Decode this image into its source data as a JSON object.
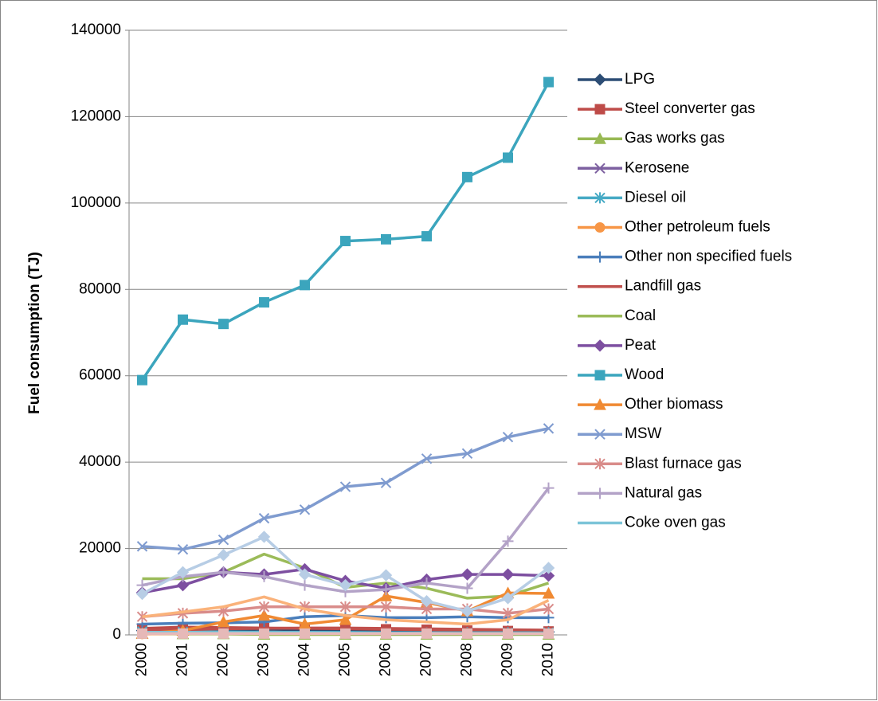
{
  "chart_data": {
    "type": "line",
    "y_label": "Fuel consumption (TJ)",
    "categories": [
      "2000",
      "2001",
      "2002",
      "2003",
      "2004",
      "2005",
      "2006",
      "2007",
      "2008",
      "2009",
      "2010"
    ],
    "ylim": [
      0,
      140000
    ],
    "yticks": [
      0,
      20000,
      40000,
      60000,
      80000,
      100000,
      120000,
      140000
    ],
    "grid": true,
    "legend": "right",
    "series": [
      {
        "name": "LPG",
        "color": "#2C4D75",
        "marker": "diamond",
        "values": [
          1000,
          1200,
          1100,
          1300,
          1200,
          1100,
          1000,
          900,
          800,
          800,
          700
        ]
      },
      {
        "name": "Steel converter gas",
        "color": "#BE4B48",
        "marker": "square",
        "values": [
          1500,
          1800,
          1700,
          1600,
          1500,
          1400,
          1300,
          1200,
          1000,
          900,
          800
        ]
      },
      {
        "name": "Gas works gas",
        "color": "#98B954",
        "marker": "triangle",
        "values": [
          300,
          200,
          200,
          100,
          100,
          100,
          100,
          100,
          100,
          100,
          100
        ]
      },
      {
        "name": "Kerosene",
        "color": "#7D60A0",
        "marker": "x",
        "values": [
          500,
          500,
          400,
          400,
          400,
          300,
          300,
          300,
          300,
          300,
          300
        ]
      },
      {
        "name": "Diesel oil",
        "color": "#46AAC5",
        "marker": "asterisk",
        "values": [
          800,
          700,
          700,
          600,
          600,
          600,
          500,
          500,
          500,
          500,
          500
        ]
      },
      {
        "name": "Other petroleum fuels",
        "color": "#F79646",
        "marker": "circle",
        "values": [
          200,
          300,
          300,
          300,
          300,
          300,
          300,
          300,
          300,
          300,
          300
        ]
      },
      {
        "name": "Other non specified fuels",
        "color": "#4A7EBB",
        "marker": "plus",
        "values": [
          2500,
          2700,
          2800,
          3000,
          4200,
          4500,
          4000,
          4000,
          4200,
          4000,
          4000
        ]
      },
      {
        "name": "Landfill gas",
        "color": "#C0504D",
        "marker": "none",
        "values": [
          1000,
          1200,
          1400,
          1500,
          1600,
          1600,
          1500,
          1400,
          1300,
          1200,
          1100
        ]
      },
      {
        "name": "Coal",
        "color": "#9BBB59",
        "marker": "none",
        "values": [
          13000,
          13000,
          14500,
          18700,
          15500,
          11000,
          12000,
          10800,
          8500,
          9000,
          12000
        ]
      },
      {
        "name": "Peat",
        "color": "#7D4FA0",
        "marker": "diamond",
        "values": [
          9800,
          11500,
          14500,
          14000,
          15200,
          12500,
          10800,
          12800,
          14000,
          14000,
          13700
        ]
      },
      {
        "name": "Wood",
        "color": "#3BA5BD",
        "marker": "square",
        "values": [
          59000,
          73000,
          72000,
          77000,
          81000,
          91200,
          91600,
          92300,
          106000,
          110500,
          128000
        ]
      },
      {
        "name": "Other biomass",
        "color": "#F08A33",
        "marker": "triangle",
        "values": [
          300,
          1000,
          3000,
          4500,
          2500,
          3500,
          9000,
          7500,
          5500,
          9700,
          9600
        ]
      },
      {
        "name": "MSW",
        "color": "#7F9BCF",
        "marker": "x",
        "values": [
          20500,
          19800,
          22000,
          27000,
          29000,
          34300,
          35200,
          40800,
          42000,
          45800,
          47800
        ]
      },
      {
        "name": "Blast furnace gas",
        "color": "#D98C8A",
        "marker": "asterisk",
        "values": [
          4200,
          5000,
          5500,
          6500,
          6500,
          6500,
          6500,
          6000,
          6000,
          5000,
          6000
        ]
      },
      {
        "name": "Natural gas",
        "color": "#B3A2C7",
        "marker": "plus",
        "values": [
          11500,
          13500,
          14500,
          13500,
          11500,
          10000,
          10500,
          12000,
          10800,
          21700,
          34000
        ]
      },
      {
        "name": "Coke oven gas",
        "color": "#7CC4D8",
        "marker": "none",
        "values": [
          600,
          600,
          500,
          500,
          500,
          400,
          400,
          400,
          300,
          300,
          300
        ]
      },
      {
        "color": "#B7CDE5",
        "marker": "diamond",
        "values": [
          9500,
          14500,
          18500,
          22700,
          14000,
          11500,
          13800,
          7800,
          5500,
          8500,
          15500
        ]
      },
      {
        "color": "#FAB27A",
        "marker": "none",
        "values": [
          4200,
          5300,
          6500,
          8800,
          6000,
          4500,
          3500,
          3000,
          2500,
          3500,
          8000
        ]
      },
      {
        "color": "#E6B9B8",
        "marker": "square",
        "values": [
          300,
          300,
          300,
          300,
          300,
          300,
          300,
          300,
          300,
          300,
          300
        ]
      }
    ]
  }
}
